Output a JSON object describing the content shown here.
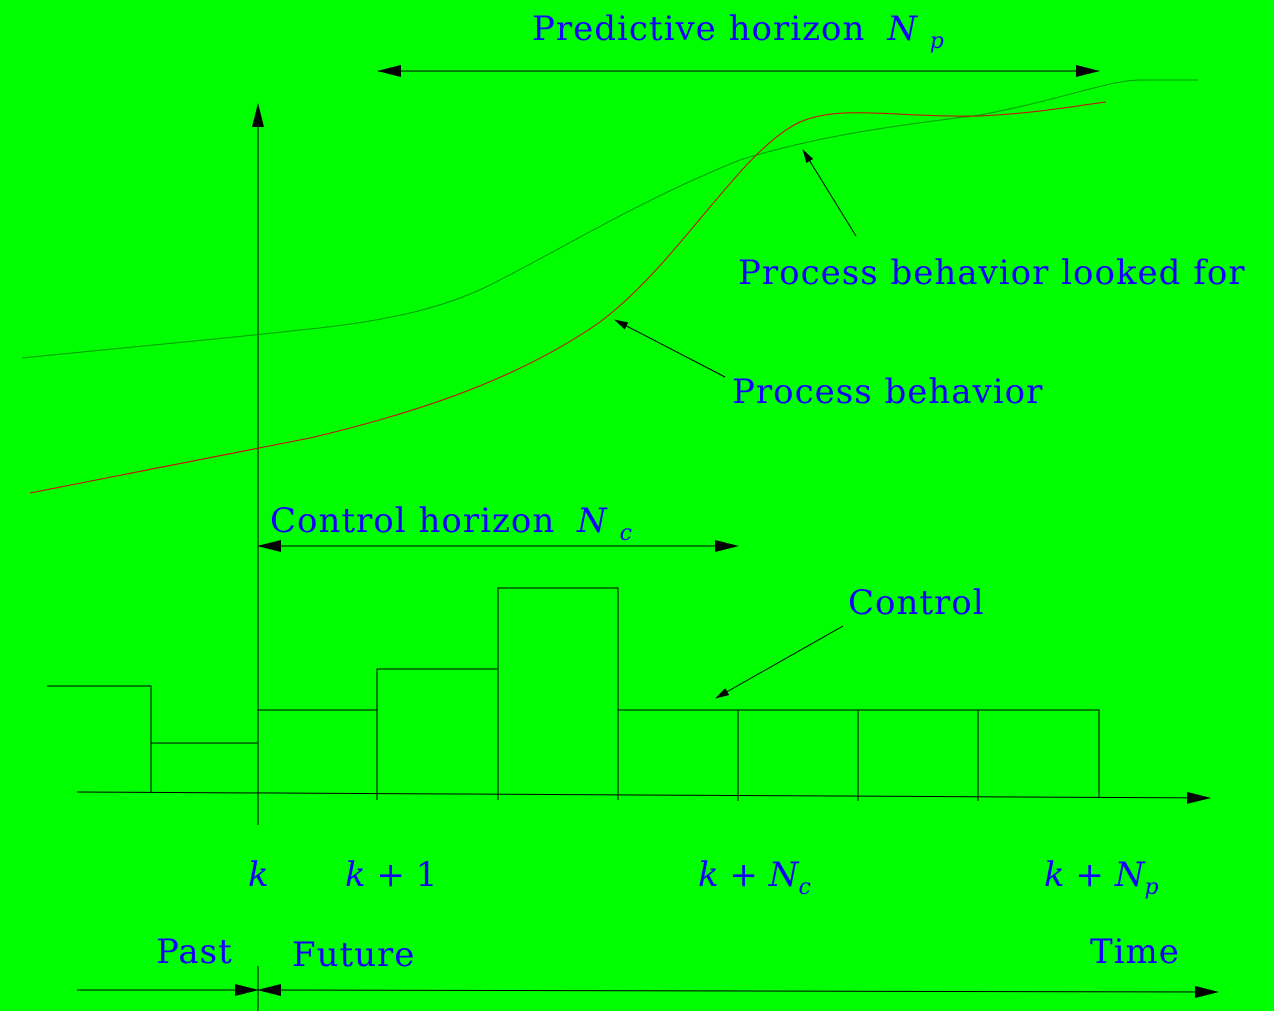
{
  "colors": {
    "background": "#00ff00",
    "text": "#1400ff",
    "process_behavior_curve": "#d40000",
    "process_looked_for_curve": "#009900",
    "lines": "#000000"
  },
  "labels": {
    "predictive_horizon": "Predictive horizon",
    "predictive_horizon_symbol": "N",
    "predictive_horizon_sub": "p",
    "process_looked_for": "Process behavior looked for",
    "process_behavior": "Process behavior",
    "control_horizon": "Control horizon",
    "control_horizon_symbol": "N",
    "control_horizon_sub": "c",
    "control": "Control",
    "tick_k": "k",
    "tick_k1_var": "k",
    "tick_k1_rest": " + 1",
    "tick_knc_var": "k",
    "tick_knc_op": " + ",
    "tick_knc_sym": "N",
    "tick_knc_sub": "c",
    "tick_knp_var": "k",
    "tick_knp_op": " + ",
    "tick_knp_sym": "N",
    "tick_knp_sub": "p",
    "past": "Past",
    "future": "Future",
    "time": "Time"
  }
}
